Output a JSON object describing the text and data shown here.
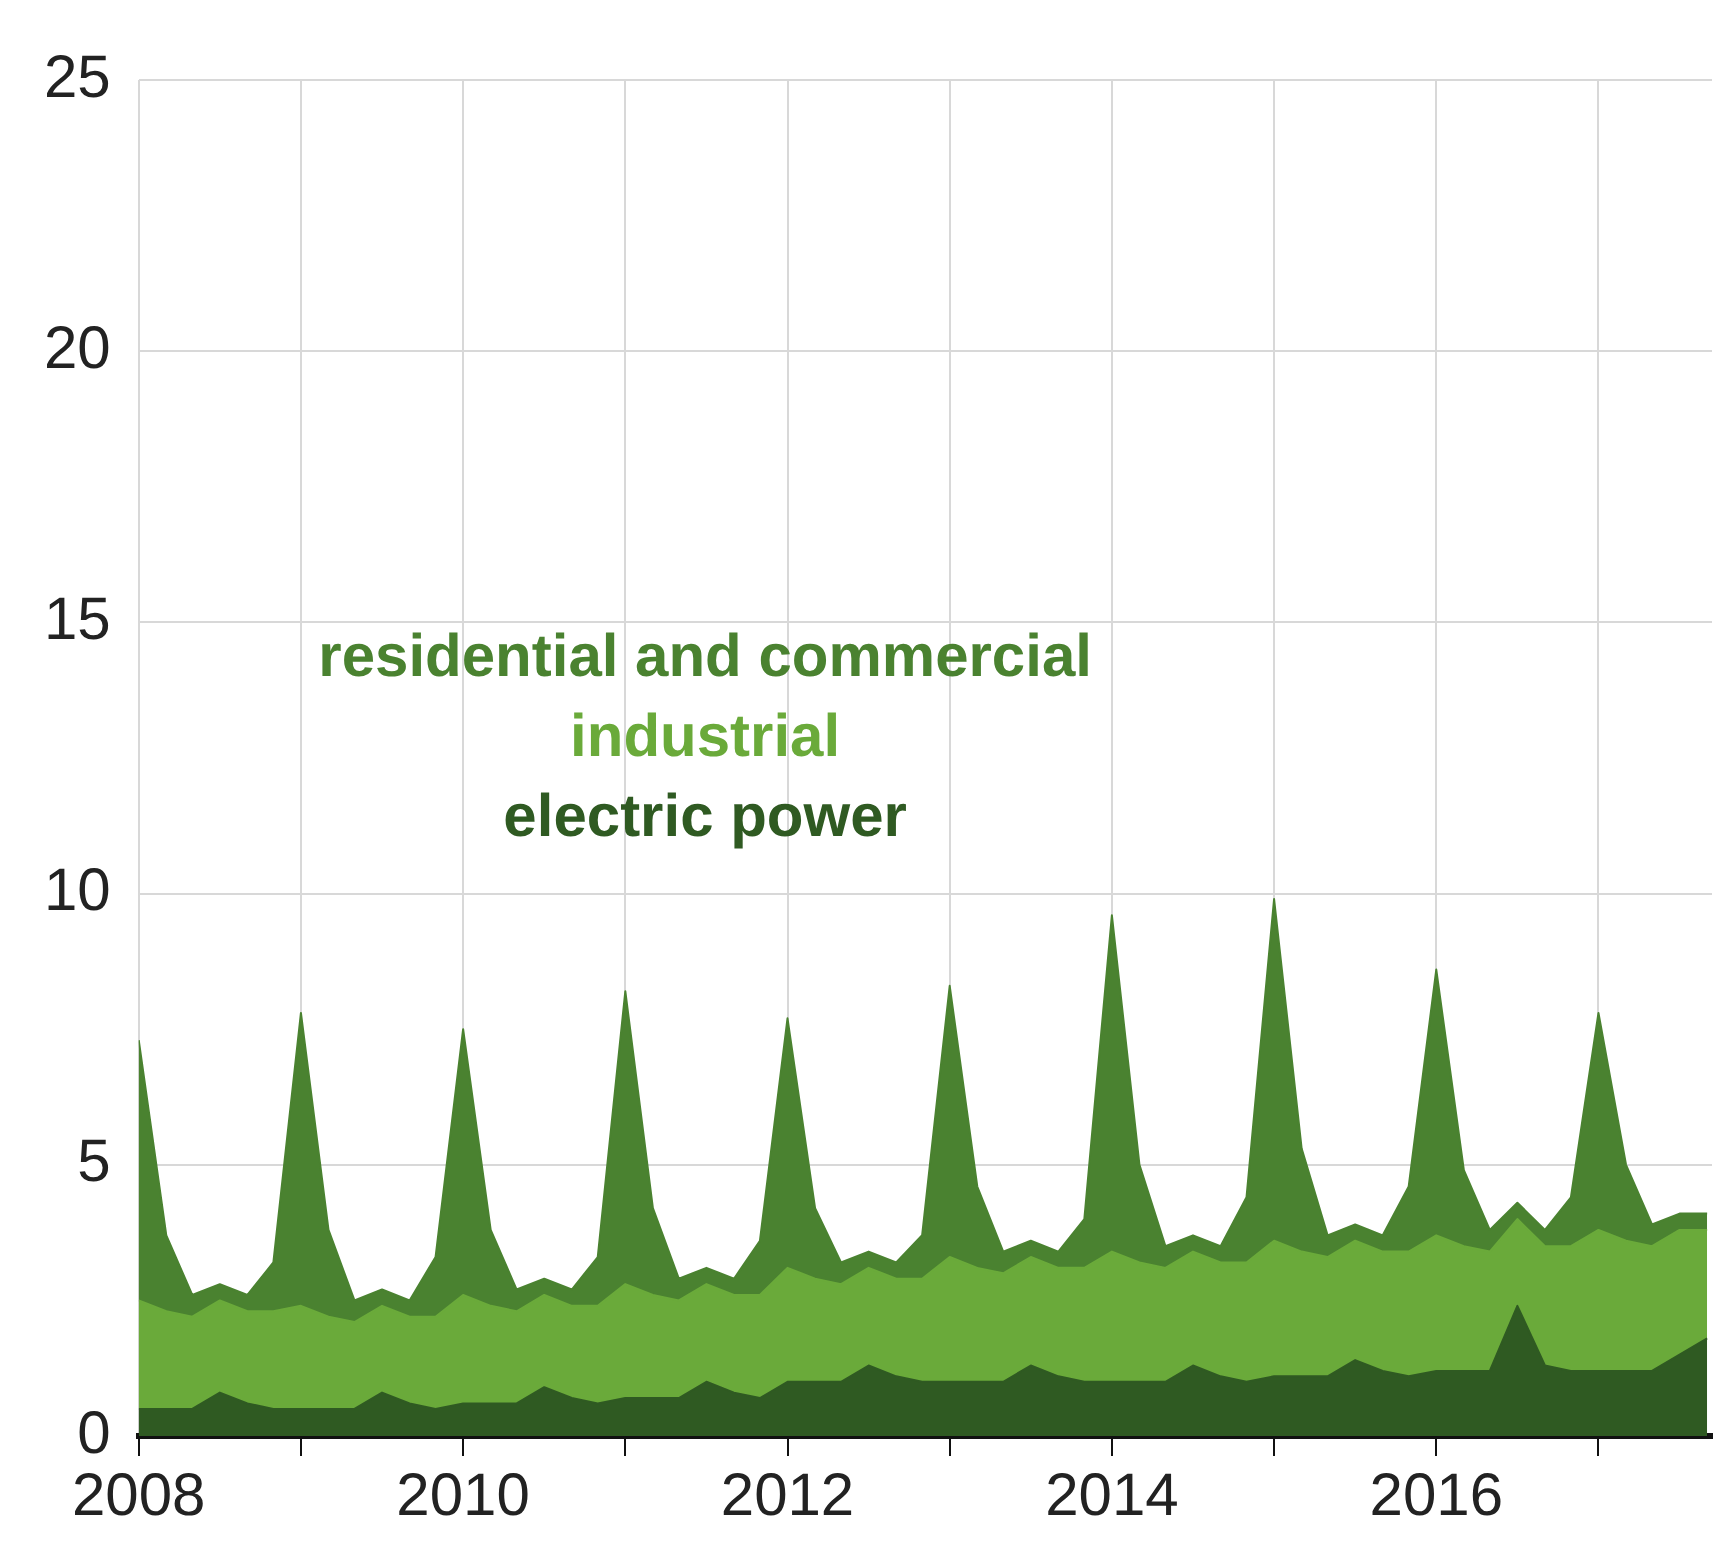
{
  "chart_data": {
    "type": "area",
    "stacked": true,
    "x": [
      2008,
      2008.17,
      2008.33,
      2008.5,
      2008.67,
      2008.83,
      2009,
      2009.17,
      2009.33,
      2009.5,
      2009.67,
      2009.83,
      2010,
      2010.17,
      2010.33,
      2010.5,
      2010.67,
      2010.83,
      2011,
      2011.17,
      2011.33,
      2011.5,
      2011.67,
      2011.83,
      2012,
      2012.17,
      2012.33,
      2012.5,
      2012.67,
      2012.83,
      2013,
      2013.17,
      2013.33,
      2013.5,
      2013.67,
      2013.83,
      2014,
      2014.17,
      2014.33,
      2014.5,
      2014.67,
      2014.83,
      2015,
      2015.17,
      2015.33,
      2015.5,
      2015.67,
      2015.83,
      2016,
      2016.17,
      2016.33,
      2016.5,
      2016.67,
      2016.83,
      2017,
      2017.17,
      2017.33,
      2017.5,
      2017.67
    ],
    "series": [
      {
        "name": "electric power",
        "color": "#2f5a22",
        "values": [
          0.5,
          0.5,
          0.5,
          0.8,
          0.6,
          0.5,
          0.5,
          0.5,
          0.5,
          0.8,
          0.6,
          0.5,
          0.6,
          0.6,
          0.6,
          0.9,
          0.7,
          0.6,
          0.7,
          0.7,
          0.7,
          1.0,
          0.8,
          0.7,
          1.0,
          1.0,
          1.0,
          1.3,
          1.1,
          1.0,
          1.0,
          1.0,
          1.0,
          1.3,
          1.1,
          1.0,
          1.0,
          1.0,
          1.0,
          1.3,
          1.1,
          1.0,
          1.1,
          1.1,
          1.1,
          1.4,
          1.2,
          1.1,
          1.2,
          1.2,
          1.2,
          2.4,
          1.3,
          1.2,
          1.2,
          1.2,
          1.2,
          1.5,
          1.8
        ]
      },
      {
        "name": "industrial",
        "color": "#6aaa3a",
        "values": [
          2.0,
          1.8,
          1.7,
          1.7,
          1.7,
          1.8,
          1.9,
          1.7,
          1.6,
          1.6,
          1.6,
          1.7,
          2.0,
          1.8,
          1.7,
          1.7,
          1.7,
          1.8,
          2.1,
          1.9,
          1.8,
          1.8,
          1.8,
          1.9,
          2.1,
          1.9,
          1.8,
          1.8,
          1.8,
          1.9,
          2.3,
          2.1,
          2.0,
          2.0,
          2.0,
          2.1,
          2.4,
          2.2,
          2.1,
          2.1,
          2.1,
          2.2,
          2.5,
          2.3,
          2.2,
          2.2,
          2.2,
          2.3,
          2.5,
          2.3,
          2.2,
          1.6,
          2.2,
          2.3,
          2.6,
          2.4,
          2.3,
          2.3,
          2.0
        ]
      },
      {
        "name": "residential and commercial",
        "color": "#4a8230",
        "values": [
          4.8,
          1.4,
          0.4,
          0.3,
          0.3,
          0.9,
          5.4,
          1.6,
          0.4,
          0.3,
          0.3,
          1.1,
          4.9,
          1.4,
          0.4,
          0.3,
          0.3,
          0.9,
          5.4,
          1.6,
          0.4,
          0.3,
          0.3,
          1.0,
          4.6,
          1.3,
          0.4,
          0.3,
          0.3,
          0.8,
          5.0,
          1.5,
          0.4,
          0.3,
          0.3,
          0.9,
          6.2,
          1.8,
          0.4,
          0.3,
          0.3,
          1.2,
          6.3,
          1.9,
          0.4,
          0.3,
          0.3,
          1.2,
          4.9,
          1.4,
          0.4,
          0.3,
          0.3,
          0.9,
          4.0,
          1.4,
          0.4,
          0.3,
          0.3
        ]
      }
    ],
    "xlim": [
      2008,
      2017.7
    ],
    "xticks": [
      2008,
      {
        "value": 2009,
        "label": null
      },
      2010,
      {
        "value": 2011,
        "label": null
      },
      2012,
      {
        "value": 2013,
        "label": null
      },
      2014,
      {
        "value": 2015,
        "label": null
      },
      2016,
      {
        "value": 2017,
        "label": null
      }
    ],
    "ylim": [
      0,
      25
    ],
    "yticks": [
      0,
      5,
      10,
      15,
      20,
      25
    ],
    "grid": true,
    "legend": "left"
  }
}
